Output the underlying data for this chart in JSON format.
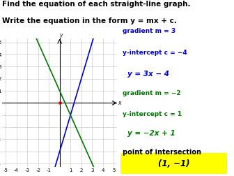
{
  "title_line1": "Find the equation of each straight-line graph.",
  "title_line2": "Write the equation in the form y = mx + c.",
  "bg_color": "#ffffff",
  "grid_color": "#cccccc",
  "axis_range": [
    -5,
    5
  ],
  "line1": {
    "m": 3,
    "c": -4,
    "color": "#0000cc"
  },
  "line2": {
    "m": -2,
    "c": 1,
    "color": "#007700"
  },
  "text_color_blue": "#0000cc",
  "text_color_green": "#007700",
  "text_color_black": "#000000",
  "right_panel": {
    "gradient1_label": "gradient m = 3",
    "intercept1_label": "y-intercept c = −4",
    "eq1_label": "y = 3x − 4",
    "gradient2_label": "gradient m = −2",
    "intercept2_label": "y-intercept c = 1",
    "eq2_label": "y = −2x + 1",
    "intersection_label": "point of intersection",
    "intersection_value": "(1, −1)"
  },
  "title_fontsize": 7.5,
  "label_fontsize": 6.5,
  "eq_fontsize": 7.5,
  "intersect_fontsize": 7.0,
  "intersect_val_fontsize": 8.5
}
